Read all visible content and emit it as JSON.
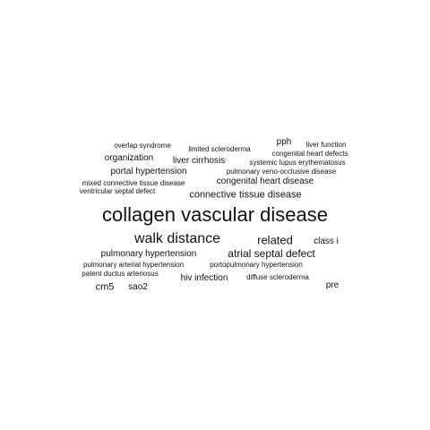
{
  "words": [
    {
      "text": "collagen vascular disease"
    },
    {
      "text": "walk distance"
    },
    {
      "text": "related"
    },
    {
      "text": "class i"
    },
    {
      "text": "atrial septal defect"
    },
    {
      "text": "pulmonary hypertension"
    },
    {
      "text": "connective tissue disease"
    },
    {
      "text": "congenital heart disease"
    },
    {
      "text": "portal hypertension"
    },
    {
      "text": "liver cirrhosis"
    },
    {
      "text": "organization"
    },
    {
      "text": "pph"
    },
    {
      "text": "overlap syndrome"
    },
    {
      "text": "limited scleroderma"
    },
    {
      "text": "liver function"
    },
    {
      "text": "congenital heart defects"
    },
    {
      "text": "systemic lupus erythematosus"
    },
    {
      "text": "pulmonary veno-occlusive disease"
    },
    {
      "text": "mixed connective tissue disease"
    },
    {
      "text": "ventricular septal defect"
    },
    {
      "text": "pulmonary arterial hypertension"
    },
    {
      "text": "portopulmonary hypertension"
    },
    {
      "text": "patent ductus arteriosus"
    },
    {
      "text": "hiv infection"
    },
    {
      "text": "diffuse scleroderma"
    },
    {
      "text": "cm5"
    },
    {
      "text": "sao2"
    },
    {
      "text": "pre"
    }
  ]
}
